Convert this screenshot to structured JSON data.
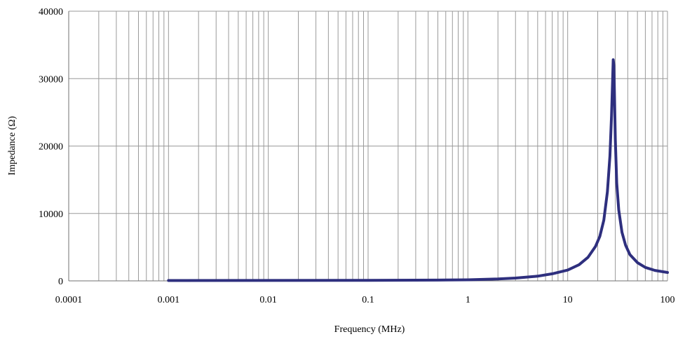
{
  "chart_data": {
    "type": "line",
    "x_scale": "log",
    "xlabel": "Frequency (MHz)",
    "ylabel": "Impedance (Ω)",
    "xlim": [
      0.0001,
      100
    ],
    "ylim": [
      0,
      40000
    ],
    "x_ticks": [
      "0.0001",
      "0.001",
      "0.01",
      "0.1",
      "1",
      "10",
      "100"
    ],
    "y_ticks": [
      "0",
      "10000",
      "20000",
      "30000",
      "40000"
    ],
    "grid": true,
    "line_color": "#2e2f7e",
    "series": [
      {
        "x": [
          0.001,
          0.01,
          0.1,
          0.5,
          1,
          2,
          3,
          5,
          7,
          10,
          13,
          16,
          19,
          21,
          23,
          25,
          26.5,
          27.5,
          28.2,
          28.6,
          29,
          29.5,
          30,
          31,
          32.5,
          35,
          38,
          42,
          50,
          60,
          75,
          100
        ],
        "y": [
          50,
          60,
          70,
          110,
          160,
          280,
          420,
          700,
          1050,
          1600,
          2400,
          3500,
          5100,
          6600,
          9000,
          13200,
          18500,
          24500,
          30000,
          32800,
          32000,
          27000,
          21000,
          14500,
          10500,
          7200,
          5300,
          3900,
          2700,
          2000,
          1550,
          1250
        ]
      }
    ]
  }
}
